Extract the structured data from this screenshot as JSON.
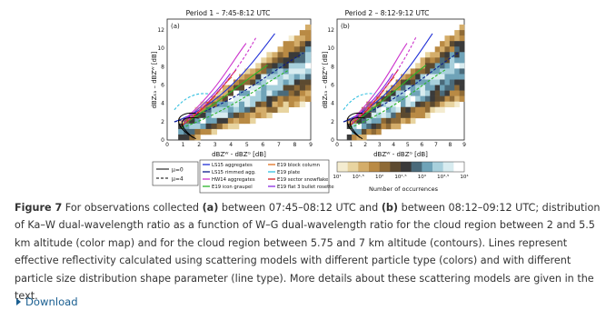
{
  "figure": {
    "panel_a": {
      "title": "Period 1 – 7:45-8:12 UTC",
      "label": "(a)"
    },
    "panel_b": {
      "title": "Period 2 – 8:12-9:12 UTC",
      "label": "(b)"
    },
    "ylabel": "dBZₖₐ – dBZᵂ [dB]",
    "xlabel": "dBZᵂ - dBZᴳ [dB]",
    "x_ticks": [
      "0",
      "1",
      "2",
      "3",
      "4",
      "5",
      "6",
      "7",
      "8",
      "9"
    ],
    "y_ticks": [
      "0",
      "2",
      "4",
      "6",
      "8",
      "10",
      "12"
    ],
    "legend_mu": [
      {
        "style": "solid",
        "label": "μ=0"
      },
      {
        "style": "dashed",
        "label": "μ=4"
      }
    ],
    "legend_models": [
      {
        "label": "LS15 aggregates",
        "color": "#1f2fd6"
      },
      {
        "label": "LS15 rimmed agg.",
        "color": "#0a1a8a"
      },
      {
        "label": "HW14 aggregates",
        "color": "#cc33cc"
      },
      {
        "label": "E19 icon graupel",
        "color": "#2ab52a"
      },
      {
        "label": "E19 block column",
        "color": "#e07020"
      },
      {
        "label": "E19 plate",
        "color": "#33c0e0"
      },
      {
        "label": "E19 sector snowflake",
        "color": "#d62020"
      },
      {
        "label": "E19 flat 3 bullet rosette",
        "color": "#8a2be2"
      }
    ],
    "colorbar_ticks": [
      "10¹",
      "10¹·⁵",
      "10²",
      "10²·⁵",
      "10³",
      "10³·⁵",
      "10⁴"
    ],
    "colorbar_label": "Number of occurrences"
  },
  "caption": {
    "label": "Figure 7",
    "t1": " For observations collected ",
    "a": "(a)",
    "t2": " between 07:45–08:12 UTC and ",
    "b": "(b)",
    "t3": " between 08:12–09:12 UTC; distribution of Ka–W dual-wavelength ratio as a function of W–G dual-wavelength ratio for the cloud region between 2 and 5.5 km altitude (color map) and for the cloud region between 5.75 and 7 km altitude (contours). Lines represent effective reflectivity calculated using scattering models with different particle type (colors) and with different particle size distribution shape parameter (line type). More details about these scattering models are given in the text."
  },
  "download": {
    "label": "Download"
  }
}
